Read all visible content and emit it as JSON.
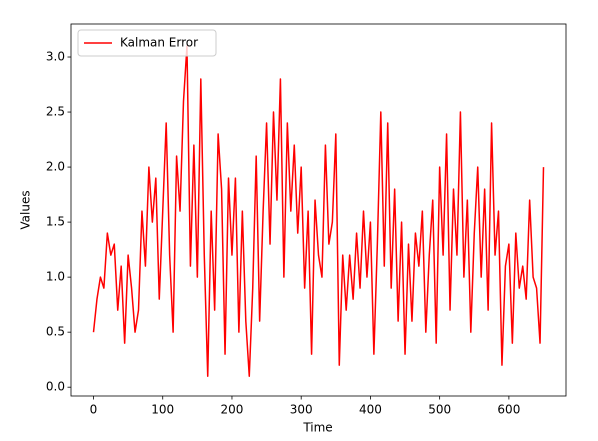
{
  "chart_data": {
    "type": "line",
    "xlabel": "Time",
    "ylabel": "Values",
    "legend": "upper left",
    "x": [
      0,
      5,
      10,
      15,
      20,
      25,
      30,
      35,
      40,
      45,
      50,
      55,
      60,
      65,
      70,
      75,
      80,
      85,
      90,
      95,
      100,
      105,
      110,
      115,
      120,
      125,
      130,
      135,
      140,
      145,
      150,
      155,
      160,
      165,
      170,
      175,
      180,
      185,
      190,
      195,
      200,
      205,
      210,
      215,
      220,
      225,
      230,
      235,
      240,
      245,
      250,
      255,
      260,
      265,
      270,
      275,
      280,
      285,
      290,
      295,
      300,
      305,
      310,
      315,
      320,
      325,
      330,
      335,
      340,
      345,
      350,
      355,
      360,
      365,
      370,
      375,
      380,
      385,
      390,
      395,
      400,
      405,
      410,
      415,
      420,
      425,
      430,
      435,
      440,
      445,
      450,
      455,
      460,
      465,
      470,
      475,
      480,
      485,
      490,
      495,
      500,
      505,
      510,
      515,
      520,
      525,
      530,
      535,
      540,
      545,
      550,
      555,
      560,
      565,
      570,
      575,
      580,
      585,
      590,
      595,
      600,
      605,
      610,
      615,
      620,
      625,
      630,
      635,
      640,
      645,
      650
    ],
    "series": [
      {
        "name": "Kalman Error",
        "color": "#ff0000",
        "values": [
          0.5,
          0.8,
          1.0,
          0.9,
          1.4,
          1.2,
          1.3,
          0.7,
          1.1,
          0.4,
          1.2,
          0.9,
          0.5,
          0.7,
          1.6,
          1.1,
          2.0,
          1.5,
          1.9,
          0.8,
          1.6,
          2.4,
          1.2,
          0.5,
          2.1,
          1.6,
          2.6,
          3.1,
          1.1,
          2.2,
          1.0,
          2.8,
          1.2,
          0.1,
          1.6,
          0.7,
          2.3,
          1.8,
          0.3,
          1.9,
          1.2,
          1.9,
          0.5,
          1.6,
          0.6,
          0.1,
          0.9,
          2.1,
          0.6,
          1.6,
          2.4,
          1.3,
          2.5,
          1.7,
          2.8,
          1.0,
          2.4,
          1.6,
          2.2,
          1.4,
          2.0,
          0.9,
          1.6,
          0.3,
          1.7,
          1.2,
          1.0,
          2.2,
          1.3,
          1.5,
          2.3,
          0.2,
          1.2,
          0.7,
          1.2,
          0.8,
          1.4,
          0.9,
          1.6,
          1.0,
          1.5,
          0.3,
          1.3,
          2.5,
          1.1,
          2.4,
          0.9,
          1.8,
          0.6,
          1.5,
          0.3,
          1.3,
          0.6,
          1.4,
          1.1,
          1.6,
          0.5,
          1.2,
          1.7,
          0.4,
          2.0,
          1.2,
          2.3,
          0.7,
          1.8,
          1.2,
          2.5,
          1.0,
          1.7,
          0.5,
          1.4,
          2.0,
          1.0,
          1.8,
          0.7,
          2.4,
          1.2,
          1.6,
          0.2,
          1.1,
          1.3,
          0.4,
          1.4,
          0.9,
          1.1,
          0.8,
          1.7,
          1.0,
          0.9,
          0.4,
          2.0
        ]
      }
    ],
    "xlim": [
      -32.5,
      682.5
    ],
    "xticks": [
      0,
      100,
      200,
      300,
      400,
      500,
      600
    ],
    "ylim": [
      -0.08,
      3.3
    ],
    "yticks": [
      {
        "value": 0,
        "label": "0.0"
      },
      0.5,
      {
        "value": 1,
        "label": "1.0"
      },
      1.5,
      {
        "value": 2,
        "label": "2.0"
      },
      2.5,
      {
        "value": 3,
        "label": "3.0"
      }
    ],
    "grid": false
  }
}
